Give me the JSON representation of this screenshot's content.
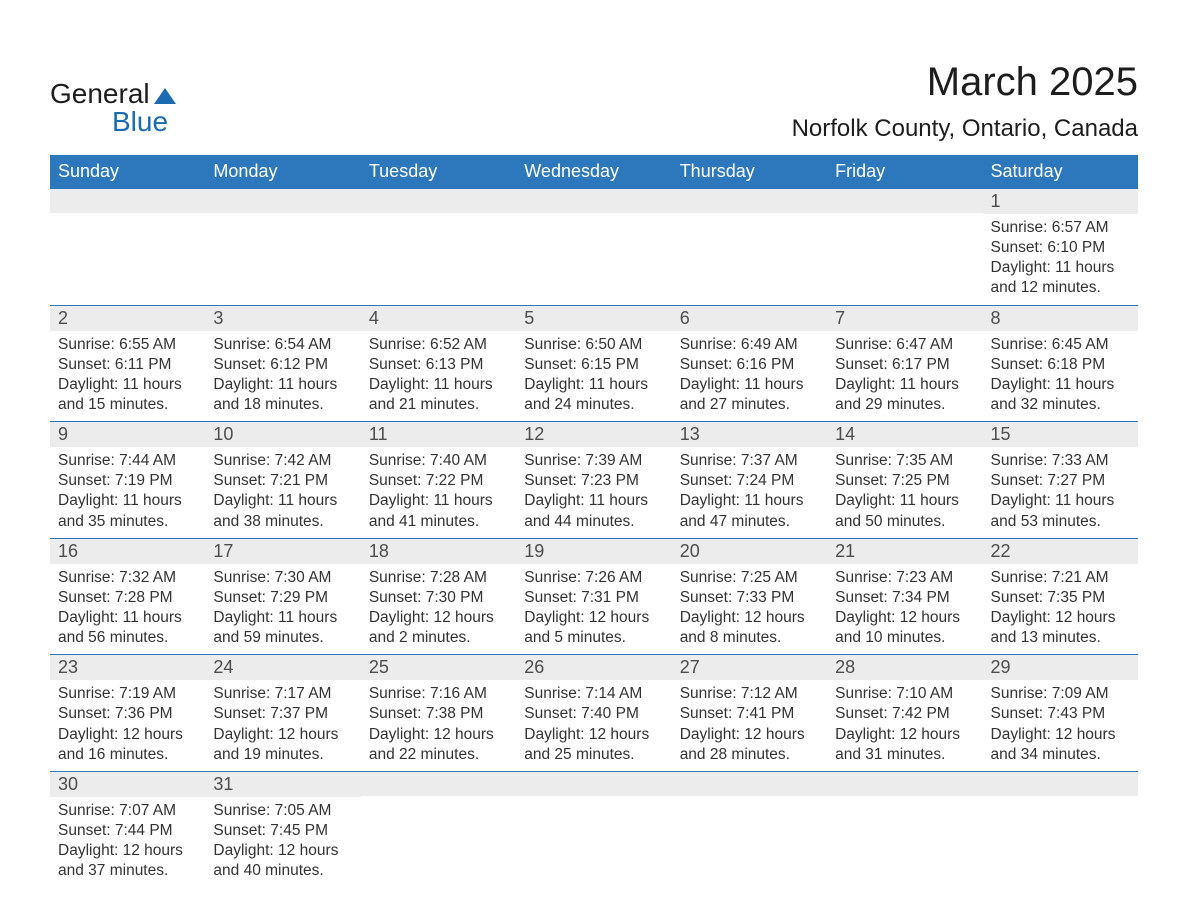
{
  "brand": {
    "general": "General",
    "blue": "Blue",
    "shape_color": "#1b6bb3"
  },
  "title": {
    "month": "March 2025",
    "location": "Norfolk County, Ontario, Canada"
  },
  "colors": {
    "header_bg": "#2d78bd",
    "header_fg": "#ffffff",
    "daynum_bg": "#ececec",
    "row_border": "#2d78bd",
    "text": "#333333",
    "bg": "#ffffff"
  },
  "days_of_week": [
    "Sunday",
    "Monday",
    "Tuesday",
    "Wednesday",
    "Thursday",
    "Friday",
    "Saturday"
  ],
  "weeks": [
    [
      {
        "n": "",
        "sr": "",
        "ss": "",
        "dl": ""
      },
      {
        "n": "",
        "sr": "",
        "ss": "",
        "dl": ""
      },
      {
        "n": "",
        "sr": "",
        "ss": "",
        "dl": ""
      },
      {
        "n": "",
        "sr": "",
        "ss": "",
        "dl": ""
      },
      {
        "n": "",
        "sr": "",
        "ss": "",
        "dl": ""
      },
      {
        "n": "",
        "sr": "",
        "ss": "",
        "dl": ""
      },
      {
        "n": "1",
        "sr": "Sunrise: 6:57 AM",
        "ss": "Sunset: 6:10 PM",
        "dl": "Daylight: 11 hours and 12 minutes."
      }
    ],
    [
      {
        "n": "2",
        "sr": "Sunrise: 6:55 AM",
        "ss": "Sunset: 6:11 PM",
        "dl": "Daylight: 11 hours and 15 minutes."
      },
      {
        "n": "3",
        "sr": "Sunrise: 6:54 AM",
        "ss": "Sunset: 6:12 PM",
        "dl": "Daylight: 11 hours and 18 minutes."
      },
      {
        "n": "4",
        "sr": "Sunrise: 6:52 AM",
        "ss": "Sunset: 6:13 PM",
        "dl": "Daylight: 11 hours and 21 minutes."
      },
      {
        "n": "5",
        "sr": "Sunrise: 6:50 AM",
        "ss": "Sunset: 6:15 PM",
        "dl": "Daylight: 11 hours and 24 minutes."
      },
      {
        "n": "6",
        "sr": "Sunrise: 6:49 AM",
        "ss": "Sunset: 6:16 PM",
        "dl": "Daylight: 11 hours and 27 minutes."
      },
      {
        "n": "7",
        "sr": "Sunrise: 6:47 AM",
        "ss": "Sunset: 6:17 PM",
        "dl": "Daylight: 11 hours and 29 minutes."
      },
      {
        "n": "8",
        "sr": "Sunrise: 6:45 AM",
        "ss": "Sunset: 6:18 PM",
        "dl": "Daylight: 11 hours and 32 minutes."
      }
    ],
    [
      {
        "n": "9",
        "sr": "Sunrise: 7:44 AM",
        "ss": "Sunset: 7:19 PM",
        "dl": "Daylight: 11 hours and 35 minutes."
      },
      {
        "n": "10",
        "sr": "Sunrise: 7:42 AM",
        "ss": "Sunset: 7:21 PM",
        "dl": "Daylight: 11 hours and 38 minutes."
      },
      {
        "n": "11",
        "sr": "Sunrise: 7:40 AM",
        "ss": "Sunset: 7:22 PM",
        "dl": "Daylight: 11 hours and 41 minutes."
      },
      {
        "n": "12",
        "sr": "Sunrise: 7:39 AM",
        "ss": "Sunset: 7:23 PM",
        "dl": "Daylight: 11 hours and 44 minutes."
      },
      {
        "n": "13",
        "sr": "Sunrise: 7:37 AM",
        "ss": "Sunset: 7:24 PM",
        "dl": "Daylight: 11 hours and 47 minutes."
      },
      {
        "n": "14",
        "sr": "Sunrise: 7:35 AM",
        "ss": "Sunset: 7:25 PM",
        "dl": "Daylight: 11 hours and 50 minutes."
      },
      {
        "n": "15",
        "sr": "Sunrise: 7:33 AM",
        "ss": "Sunset: 7:27 PM",
        "dl": "Daylight: 11 hours and 53 minutes."
      }
    ],
    [
      {
        "n": "16",
        "sr": "Sunrise: 7:32 AM",
        "ss": "Sunset: 7:28 PM",
        "dl": "Daylight: 11 hours and 56 minutes."
      },
      {
        "n": "17",
        "sr": "Sunrise: 7:30 AM",
        "ss": "Sunset: 7:29 PM",
        "dl": "Daylight: 11 hours and 59 minutes."
      },
      {
        "n": "18",
        "sr": "Sunrise: 7:28 AM",
        "ss": "Sunset: 7:30 PM",
        "dl": "Daylight: 12 hours and 2 minutes."
      },
      {
        "n": "19",
        "sr": "Sunrise: 7:26 AM",
        "ss": "Sunset: 7:31 PM",
        "dl": "Daylight: 12 hours and 5 minutes."
      },
      {
        "n": "20",
        "sr": "Sunrise: 7:25 AM",
        "ss": "Sunset: 7:33 PM",
        "dl": "Daylight: 12 hours and 8 minutes."
      },
      {
        "n": "21",
        "sr": "Sunrise: 7:23 AM",
        "ss": "Sunset: 7:34 PM",
        "dl": "Daylight: 12 hours and 10 minutes."
      },
      {
        "n": "22",
        "sr": "Sunrise: 7:21 AM",
        "ss": "Sunset: 7:35 PM",
        "dl": "Daylight: 12 hours and 13 minutes."
      }
    ],
    [
      {
        "n": "23",
        "sr": "Sunrise: 7:19 AM",
        "ss": "Sunset: 7:36 PM",
        "dl": "Daylight: 12 hours and 16 minutes."
      },
      {
        "n": "24",
        "sr": "Sunrise: 7:17 AM",
        "ss": "Sunset: 7:37 PM",
        "dl": "Daylight: 12 hours and 19 minutes."
      },
      {
        "n": "25",
        "sr": "Sunrise: 7:16 AM",
        "ss": "Sunset: 7:38 PM",
        "dl": "Daylight: 12 hours and 22 minutes."
      },
      {
        "n": "26",
        "sr": "Sunrise: 7:14 AM",
        "ss": "Sunset: 7:40 PM",
        "dl": "Daylight: 12 hours and 25 minutes."
      },
      {
        "n": "27",
        "sr": "Sunrise: 7:12 AM",
        "ss": "Sunset: 7:41 PM",
        "dl": "Daylight: 12 hours and 28 minutes."
      },
      {
        "n": "28",
        "sr": "Sunrise: 7:10 AM",
        "ss": "Sunset: 7:42 PM",
        "dl": "Daylight: 12 hours and 31 minutes."
      },
      {
        "n": "29",
        "sr": "Sunrise: 7:09 AM",
        "ss": "Sunset: 7:43 PM",
        "dl": "Daylight: 12 hours and 34 minutes."
      }
    ],
    [
      {
        "n": "30",
        "sr": "Sunrise: 7:07 AM",
        "ss": "Sunset: 7:44 PM",
        "dl": "Daylight: 12 hours and 37 minutes."
      },
      {
        "n": "31",
        "sr": "Sunrise: 7:05 AM",
        "ss": "Sunset: 7:45 PM",
        "dl": "Daylight: 12 hours and 40 minutes."
      },
      {
        "n": "",
        "sr": "",
        "ss": "",
        "dl": ""
      },
      {
        "n": "",
        "sr": "",
        "ss": "",
        "dl": ""
      },
      {
        "n": "",
        "sr": "",
        "ss": "",
        "dl": ""
      },
      {
        "n": "",
        "sr": "",
        "ss": "",
        "dl": ""
      },
      {
        "n": "",
        "sr": "",
        "ss": "",
        "dl": ""
      }
    ]
  ]
}
